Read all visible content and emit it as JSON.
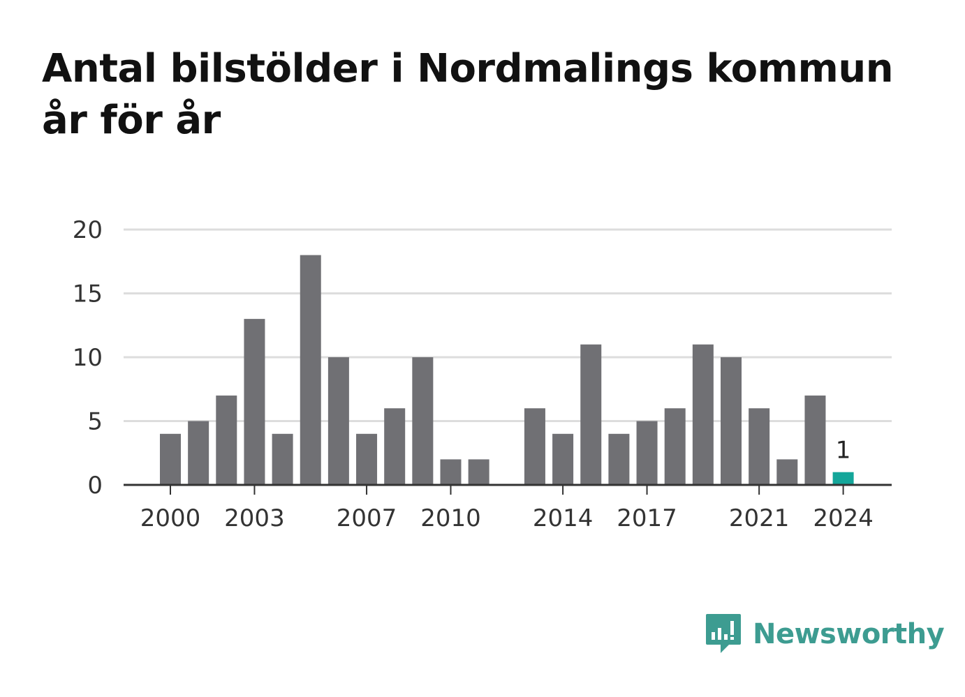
{
  "title": "Antal bilstölder i Nordmalings kommun år för år",
  "brand": {
    "name": "Newsworthy",
    "icon": "newsworthy-chart-bubble-icon"
  },
  "colors": {
    "bar": "#707074",
    "highlight": "#14a69a",
    "grid": "#dddddd",
    "axis": "#333333",
    "brand": "#3d9c91"
  },
  "chart_data": {
    "type": "bar",
    "title": "Antal bilstölder i Nordmalings kommun år för år",
    "xlabel": "",
    "ylabel": "",
    "categories": [
      "2000",
      "2001",
      "2002",
      "2003",
      "2004",
      "2005",
      "2006",
      "2007",
      "2008",
      "2009",
      "2010",
      "2011",
      "2012",
      "2013",
      "2014",
      "2015",
      "2016",
      "2017",
      "2018",
      "2019",
      "2020",
      "2021",
      "2022",
      "2023",
      "2024"
    ],
    "values": [
      4,
      5,
      7,
      13,
      4,
      18,
      10,
      4,
      6,
      10,
      2,
      2,
      0,
      6,
      4,
      11,
      4,
      5,
      6,
      11,
      10,
      6,
      2,
      7,
      1
    ],
    "x_tick_labels": [
      "2000",
      "2003",
      "2007",
      "2010",
      "2014",
      "2017",
      "2021",
      "2024"
    ],
    "yticks": [
      0,
      5,
      10,
      15,
      20
    ],
    "ylim": [
      0,
      20
    ],
    "grid": true,
    "legend": "none",
    "highlight": {
      "category": "2024",
      "label": "1"
    }
  }
}
